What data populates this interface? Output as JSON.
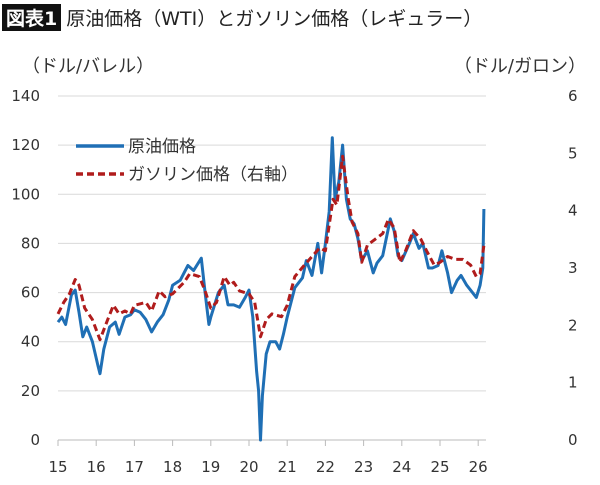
{
  "title": {
    "badge": "図表1",
    "text": "原油価格（WTI）とガソリン価格（レギュラー）"
  },
  "chart_data": {
    "type": "line",
    "title": "原油価格（WTI）とガソリン価格（レギュラー）",
    "ylabel_left": "（ドル/バレル）",
    "ylabel_right": "（ドル/ガロン）",
    "xlim": [
      2015,
      2026.2
    ],
    "ylim_left": [
      0,
      140
    ],
    "ylim_right": [
      0,
      6
    ],
    "xticks": [
      2015,
      2016,
      2017,
      2018,
      2019,
      2020,
      2021,
      2022,
      2023,
      2024,
      2025,
      2026
    ],
    "xtick_labels": [
      "15",
      "16",
      "17",
      "18",
      "19",
      "20",
      "21",
      "22",
      "23",
      "24",
      "25",
      "26"
    ],
    "yticks_left": [
      "0",
      "20",
      "40",
      "60",
      "80",
      "100",
      "120",
      "140"
    ],
    "yticks_right": [
      "0",
      "1",
      "2",
      "3",
      "4",
      "5",
      "6"
    ],
    "grid": "horizontal",
    "legend_placement": "top-left",
    "series": [
      {
        "name": "原油価格",
        "axis": "left",
        "color": "#1f6fb5",
        "style": "solid",
        "x": [
          2015.0,
          2015.1,
          2015.2,
          2015.35,
          2015.45,
          2015.55,
          2015.65,
          2015.75,
          2015.9,
          2016.05,
          2016.1,
          2016.2,
          2016.35,
          2016.5,
          2016.6,
          2016.75,
          2016.9,
          2017.0,
          2017.15,
          2017.3,
          2017.45,
          2017.6,
          2017.75,
          2017.9,
          2018.0,
          2018.2,
          2018.4,
          2018.55,
          2018.75,
          2018.85,
          2018.95,
          2019.0,
          2019.2,
          2019.35,
          2019.45,
          2019.6,
          2019.75,
          2019.9,
          2020.0,
          2020.1,
          2020.2,
          2020.25,
          2020.3,
          2020.35,
          2020.45,
          2020.55,
          2020.7,
          2020.8,
          2020.9,
          2021.0,
          2021.2,
          2021.4,
          2021.5,
          2021.65,
          2021.8,
          2021.9,
          2022.0,
          2022.1,
          2022.18,
          2022.25,
          2022.35,
          2022.45,
          2022.55,
          2022.65,
          2022.75,
          2022.85,
          2022.95,
          2023.1,
          2023.25,
          2023.35,
          2023.5,
          2023.7,
          2023.8,
          2023.9,
          2024.0,
          2024.2,
          2024.3,
          2024.45,
          2024.55,
          2024.7,
          2024.8,
          2024.95,
          2025.05,
          2025.2,
          2025.3,
          2025.45,
          2025.55,
          2025.7,
          2025.85,
          2025.95,
          2026.05,
          2026.12,
          2026.15
        ],
        "values": [
          48,
          50,
          47,
          59,
          61,
          52,
          42,
          46,
          40,
          30,
          27,
          37,
          46,
          48,
          43,
          50,
          51,
          53,
          52,
          49,
          44,
          48,
          51,
          57,
          63,
          65,
          71,
          69,
          74,
          60,
          47,
          50,
          60,
          63,
          55,
          55,
          54,
          58,
          61,
          50,
          28,
          20,
          0,
          18,
          35,
          40,
          40,
          37,
          43,
          50,
          62,
          66,
          73,
          67,
          80,
          68,
          80,
          93,
          123,
          98,
          105,
          120,
          98,
          90,
          88,
          82,
          73,
          77,
          68,
          72,
          75,
          90,
          85,
          75,
          73,
          80,
          84,
          78,
          80,
          70,
          70,
          71,
          77,
          68,
          60,
          65,
          67,
          63,
          60,
          58,
          63,
          70,
          94
        ]
      },
      {
        "name": "ガソリン価格（右軸）",
        "axis": "right",
        "color": "#b01c1c",
        "style": "dashed",
        "x": [
          2015.0,
          2015.15,
          2015.3,
          2015.45,
          2015.55,
          2015.7,
          2015.9,
          2016.1,
          2016.3,
          2016.45,
          2016.6,
          2016.75,
          2016.9,
          2017.0,
          2017.3,
          2017.45,
          2017.65,
          2017.8,
          2018.0,
          2018.3,
          2018.45,
          2018.7,
          2018.85,
          2019.0,
          2019.15,
          2019.35,
          2019.5,
          2019.6,
          2019.75,
          2020.0,
          2020.15,
          2020.3,
          2020.45,
          2020.6,
          2020.85,
          2021.0,
          2021.2,
          2021.45,
          2021.65,
          2021.85,
          2022.0,
          2022.2,
          2022.3,
          2022.45,
          2022.6,
          2022.7,
          2022.85,
          2022.95,
          2023.1,
          2023.3,
          2023.5,
          2023.65,
          2023.8,
          2023.95,
          2024.1,
          2024.3,
          2024.5,
          2024.65,
          2024.85,
          2025.0,
          2025.2,
          2025.4,
          2025.6,
          2025.8,
          2025.95,
          2026.05,
          2026.15
        ],
        "values": [
          2.2,
          2.4,
          2.55,
          2.8,
          2.7,
          2.3,
          2.1,
          1.75,
          2.1,
          2.35,
          2.2,
          2.25,
          2.2,
          2.35,
          2.4,
          2.25,
          2.6,
          2.5,
          2.55,
          2.75,
          2.9,
          2.85,
          2.6,
          2.3,
          2.4,
          2.85,
          2.7,
          2.75,
          2.6,
          2.55,
          2.4,
          1.8,
          2.1,
          2.2,
          2.15,
          2.35,
          2.85,
          3.05,
          3.2,
          3.35,
          3.3,
          4.2,
          4.1,
          4.95,
          4.2,
          3.8,
          3.6,
          3.1,
          3.4,
          3.5,
          3.6,
          3.85,
          3.7,
          3.1,
          3.3,
          3.65,
          3.5,
          3.3,
          3.05,
          3.1,
          3.2,
          3.15,
          3.15,
          3.05,
          2.85,
          2.9,
          3.4
        ]
      }
    ]
  }
}
